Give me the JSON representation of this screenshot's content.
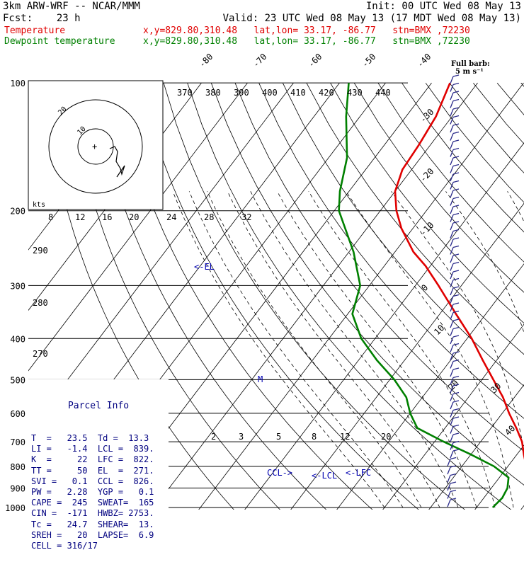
{
  "header": {
    "line1_left": "3km ARW-WRF -- NCAR/MMM",
    "line1_right": "Init: 00 UTC Wed 08 May 13",
    "line2_left": "Fcst:    23 h",
    "line2_right": "Valid: 23 UTC Wed 08 May 13 (17 MDT Wed 08 May 13)",
    "temp_label": "Temperature",
    "temp_info": "x,y=829.80,310.48   lat,lon= 33.17, -86.77   stn=BMX ,72230",
    "dew_label": "Dewpoint temperature",
    "dew_info": "x,y=829.80,310.48   lat,lon= 33.17, -86.77   stn=BMX ,72230"
  },
  "barb_legend": {
    "line1": "Full barb:",
    "line2": "5 m s⁻¹"
  },
  "hodograph": {
    "ring_small": "10",
    "ring_large": "20",
    "units": "kts"
  },
  "theta_e_labels": [
    "370",
    "380",
    "390",
    "400",
    "410",
    "420",
    "430",
    "440"
  ],
  "theta_labels": [
    "290",
    "280",
    "270"
  ],
  "hodo_speed_labels": [
    "8",
    "12",
    "16",
    "20",
    "24",
    "28",
    "32"
  ],
  "mixing_ratio_labels": [
    "2",
    "3",
    "5",
    "8",
    "12",
    "20"
  ],
  "level_labels": {
    "el": "<-EL",
    "lcl": "<-LCL",
    "ccl": "CCL->",
    "lfc": "<-LFC",
    "m": "M"
  },
  "parcel": {
    "title": "Parcel Info",
    "rows": [
      "T  =   23.5  Td =  13.3",
      "LI =   -1.4  LCL =  839.",
      "K  =     22  LFC =  822.",
      "TT =     50  EL  =  271.",
      "SVI =   0.1  CCL =  826.",
      "PW =   2.28  YGP =   0.1",
      "CAPE =  245  SWEAT=  165",
      "CIN =  -171  HWBZ= 2753.",
      "Tc =   24.7  SHEAR=  13.",
      "SREH =   20  LAPSE=  6.9",
      "CELL = 316/17"
    ]
  },
  "chart_data": {
    "type": "line",
    "title": "",
    "ylabel": "",
    "xlabel": "",
    "pressure_levels": [
      100,
      200,
      300,
      400,
      500,
      600,
      700,
      800,
      900,
      1000
    ],
    "isotherm_labels": [
      -80,
      -70,
      -60,
      -50,
      -40,
      -30,
      -20,
      -10,
      0,
      10,
      20,
      30,
      40
    ],
    "series": [
      {
        "name": "Temperature",
        "color": "#e00000",
        "points": [
          {
            "p": 1000,
            "t": 27.5
          },
          {
            "p": 950,
            "t": 23.0
          },
          {
            "p": 900,
            "t": 19.5
          },
          {
            "p": 850,
            "t": 16.5
          },
          {
            "p": 800,
            "t": 14.0
          },
          {
            "p": 750,
            "t": 11.5
          },
          {
            "p": 700,
            "t": 9.0
          },
          {
            "p": 650,
            "t": 5.5
          },
          {
            "p": 600,
            "t": 1.5
          },
          {
            "p": 550,
            "t": -2.5
          },
          {
            "p": 500,
            "t": -7.5
          },
          {
            "p": 450,
            "t": -13.0
          },
          {
            "p": 400,
            "t": -19.0
          },
          {
            "p": 350,
            "t": -26.5
          },
          {
            "p": 300,
            "t": -35.0
          },
          {
            "p": 270,
            "t": -41.0
          },
          {
            "p": 250,
            "t": -46.0
          },
          {
            "p": 220,
            "t": -52.5
          },
          {
            "p": 200,
            "t": -56.5
          },
          {
            "p": 180,
            "t": -60.0
          },
          {
            "p": 160,
            "t": -62.0
          },
          {
            "p": 140,
            "t": -62.5
          },
          {
            "p": 120,
            "t": -63.5
          },
          {
            "p": 100,
            "t": -66.0
          }
        ]
      },
      {
        "name": "Dewpoint temperature",
        "color": "#008000",
        "points": [
          {
            "p": 1000,
            "t": 13.5
          },
          {
            "p": 950,
            "t": 14.0
          },
          {
            "p": 900,
            "t": 13.5
          },
          {
            "p": 850,
            "t": 12.0
          },
          {
            "p": 800,
            "t": 7.0
          },
          {
            "p": 750,
            "t": 0.0
          },
          {
            "p": 700,
            "t": -8.0
          },
          {
            "p": 650,
            "t": -16.0
          },
          {
            "p": 600,
            "t": -20.0
          },
          {
            "p": 550,
            "t": -23.5
          },
          {
            "p": 500,
            "t": -29.0
          },
          {
            "p": 450,
            "t": -36.0
          },
          {
            "p": 400,
            "t": -43.0
          },
          {
            "p": 350,
            "t": -49.0
          },
          {
            "p": 300,
            "t": -52.0
          },
          {
            "p": 250,
            "t": -59.0
          },
          {
            "p": 200,
            "t": -69.0
          },
          {
            "p": 180,
            "t": -72.0
          },
          {
            "p": 150,
            "t": -76.0
          },
          {
            "p": 120,
            "t": -83.0
          },
          {
            "p": 100,
            "t": -88.0
          }
        ]
      }
    ]
  }
}
